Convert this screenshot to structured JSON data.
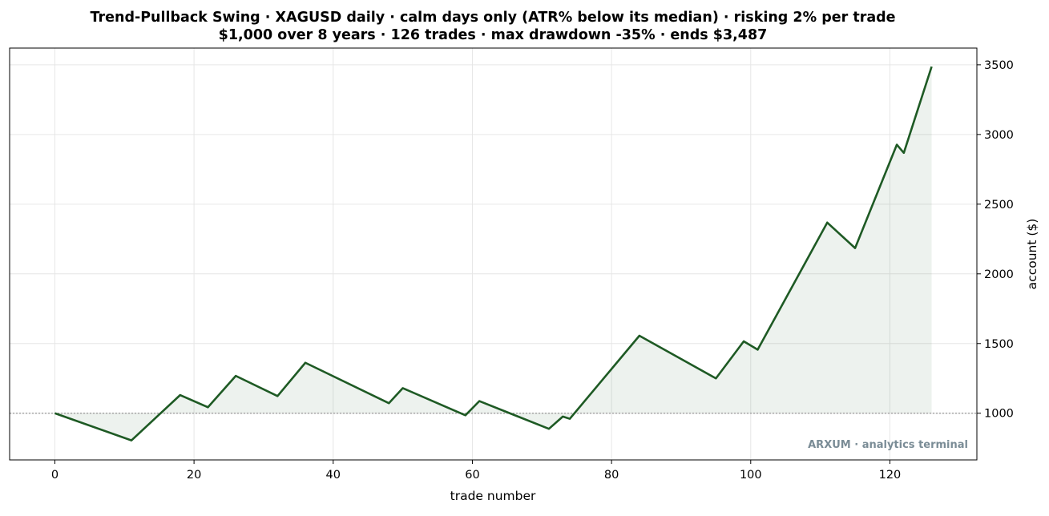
{
  "chart_data": {
    "type": "area",
    "title_lines": [
      "Trend-Pullback Swing · XAGUSD daily · calm days only (ATR% below its median) · risking 2% per trade",
      "$1,000 over 8 years · 126 trades · max drawdown -35% · ends $3,487"
    ],
    "xlabel": "trade number",
    "ylabel": "account ($)",
    "y_axis_side": "right",
    "xlim": [
      -6.5,
      132.5
    ],
    "ylim": [
      665,
      3620
    ],
    "x_ticks": [
      0,
      20,
      40,
      60,
      80,
      100,
      120
    ],
    "y_ticks": [
      1000,
      1500,
      2000,
      2500,
      3000,
      3500
    ],
    "grid": true,
    "baseline": 1000,
    "series": [
      {
        "color": "#1e5a24",
        "fill_color": "#1e5a24",
        "points": [
          [
            0,
            1000
          ],
          [
            11,
            805
          ],
          [
            18,
            1130
          ],
          [
            22,
            1043
          ],
          [
            26,
            1268
          ],
          [
            32,
            1123
          ],
          [
            36,
            1362
          ],
          [
            48,
            1072
          ],
          [
            50,
            1180
          ],
          [
            59,
            985
          ],
          [
            61,
            1087
          ],
          [
            71,
            888
          ],
          [
            73,
            976
          ],
          [
            74,
            960
          ],
          [
            84,
            1556
          ],
          [
            95,
            1250
          ],
          [
            99,
            1516
          ],
          [
            101,
            1456
          ],
          [
            111,
            2368
          ],
          [
            115,
            2185
          ],
          [
            121,
            2927
          ],
          [
            122,
            2868
          ],
          [
            126,
            3487
          ]
        ]
      }
    ]
  },
  "watermark": {
    "text": "ARXUM · analytics terminal",
    "color": "#7a8c96"
  }
}
